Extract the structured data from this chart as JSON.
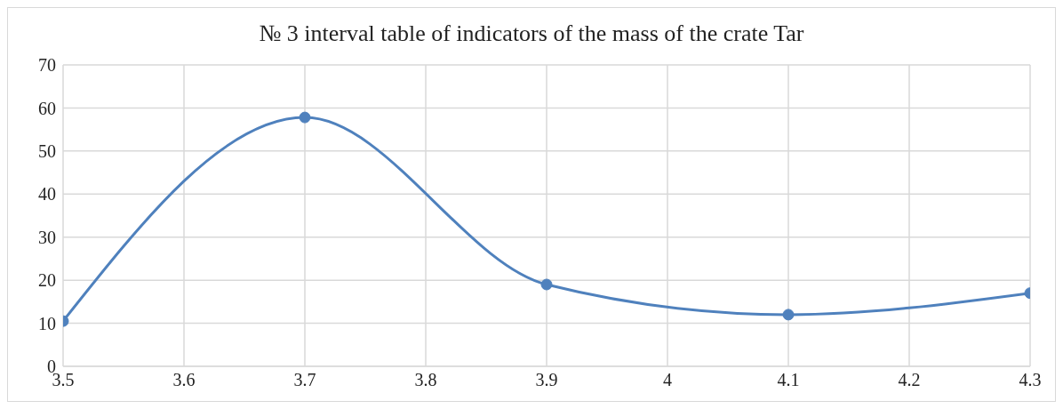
{
  "chart_data": {
    "type": "line",
    "title": "№ 3 interval table of indicators of the mass of the crate Tar",
    "x": [
      3.5,
      3.7,
      3.9,
      4.1,
      4.3
    ],
    "series": [
      {
        "color": "#4f81bd",
        "values": [
          10.5,
          57.8,
          19,
          12,
          17
        ]
      }
    ],
    "xlim": [
      3.5,
      4.3
    ],
    "xticks": [
      3.5,
      3.6,
      3.7,
      3.8,
      3.9,
      {
        "value": 4,
        "label": "4"
      },
      4.1,
      4.2,
      4.3
    ],
    "ylim": [
      0,
      70
    ],
    "yticks": [
      0,
      10,
      20,
      30,
      40,
      50,
      60,
      70
    ],
    "grid": true,
    "marker": "circle",
    "line_style": "solid"
  }
}
